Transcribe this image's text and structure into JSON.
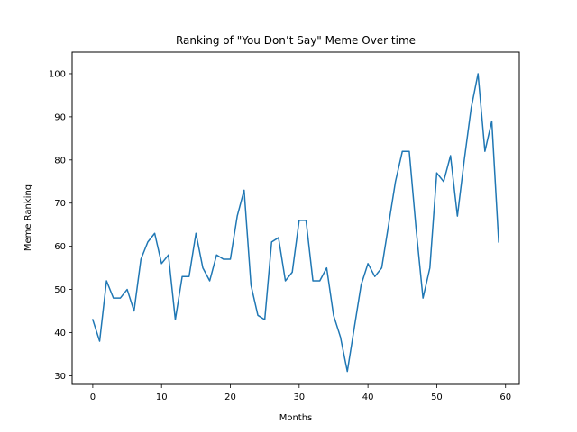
{
  "chart_data": {
    "type": "line",
    "title": "Ranking of \"You Don’t Say\" Meme Over time",
    "xlabel": "Months",
    "ylabel": "Meme Ranking",
    "xlim": [
      -3,
      62
    ],
    "ylim": [
      28,
      105
    ],
    "xticks": [
      0,
      10,
      20,
      30,
      40,
      50,
      60
    ],
    "yticks": [
      30,
      40,
      50,
      60,
      70,
      80,
      90,
      100
    ],
    "grid": false,
    "series": [
      {
        "color": "#1f77b4",
        "x": [
          0,
          1,
          2,
          3,
          4,
          5,
          6,
          7,
          8,
          9,
          10,
          11,
          12,
          13,
          14,
          15,
          16,
          17,
          18,
          19,
          20,
          21,
          22,
          23,
          24,
          25,
          26,
          27,
          28,
          29,
          30,
          31,
          32,
          33,
          34,
          35,
          36,
          37,
          38,
          39,
          40,
          41,
          42,
          43,
          44,
          45,
          46,
          47,
          48,
          49,
          50,
          51,
          52,
          53,
          54,
          55,
          56,
          57,
          58,
          59
        ],
        "values": [
          43,
          38,
          52,
          48,
          48,
          50,
          45,
          57,
          61,
          63,
          56,
          58,
          43,
          53,
          53,
          63,
          55,
          52,
          58,
          57,
          57,
          67,
          73,
          51,
          44,
          43,
          61,
          62,
          52,
          54,
          66,
          66,
          52,
          52,
          55,
          44,
          39,
          31,
          41,
          51,
          56,
          53,
          55,
          65,
          75,
          82,
          82,
          64,
          48,
          55,
          77,
          75,
          81,
          67,
          80,
          92,
          100,
          82,
          89,
          61
        ]
      }
    ]
  }
}
